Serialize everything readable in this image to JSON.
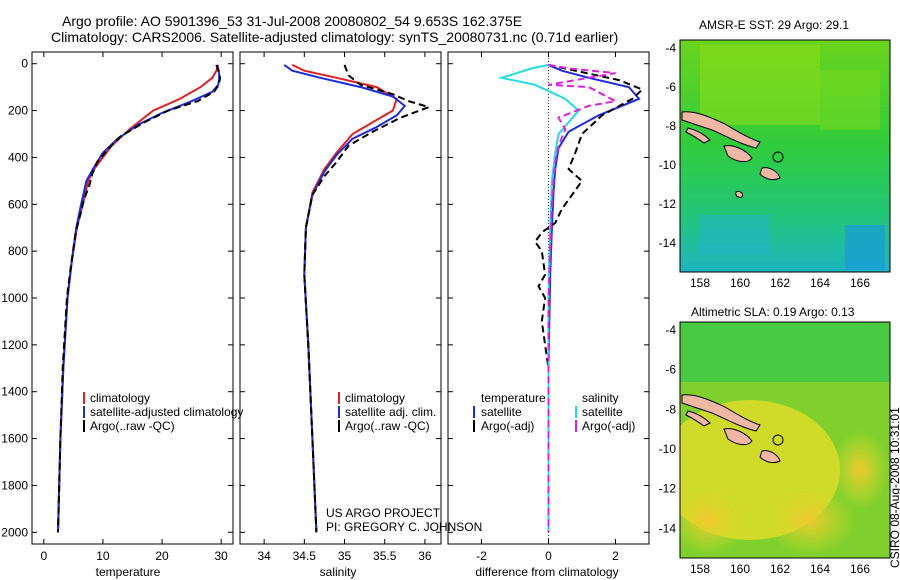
{
  "title_line1": "Argo profile: AO 5901396_53 31-Jul-2008 20080802_54 9.653S 162.375E",
  "title_line2": "Climatology: CARS2006. Satellite-adjusted climatology: synTS_20080731.nc (0.71d earlier)",
  "footer_project": "US ARGO PROJECT",
  "footer_pi": "PI: GREGORY C. JOHNSON",
  "timestamp_vertical": "CSIRO 08-Aug-2008 10:31:01",
  "colors": {
    "climatology": "#e02020",
    "satellite": "#1d2be0",
    "argo": "#000000",
    "sal_sat": "#22dde8",
    "sal_argo": "#e020e0"
  },
  "chart_data": [
    {
      "type": "line",
      "id": "temperature",
      "xlabel": "temperature",
      "ylabel": "",
      "xlim": [
        -2,
        32
      ],
      "ylim": [
        2050,
        -50
      ],
      "xticks": [
        0,
        10,
        20,
        30
      ],
      "yticks": [
        0,
        200,
        400,
        600,
        800,
        1000,
        1200,
        1400,
        1600,
        1800,
        2000
      ],
      "legend": [
        "climatology",
        "satellite-adjusted climatology",
        "Argo(..raw -QC)"
      ],
      "series": [
        {
          "name": "climatology",
          "style": "solid",
          "color": "climatology",
          "points": [
            [
              29.5,
              5
            ],
            [
              29.2,
              30
            ],
            [
              28.5,
              60
            ],
            [
              26.5,
              100
            ],
            [
              23,
              150
            ],
            [
              18.5,
              200
            ],
            [
              14.5,
              280
            ],
            [
              11.5,
              350
            ],
            [
              10,
              400
            ],
            [
              8.5,
              450
            ],
            [
              7.5,
              500
            ],
            [
              6.6,
              600
            ],
            [
              5.6,
              700
            ],
            [
              4.7,
              850
            ],
            [
              4,
              1000
            ],
            [
              3.3,
              1300
            ],
            [
              2.8,
              1600
            ],
            [
              2.4,
              2000
            ]
          ]
        },
        {
          "name": "satellite-adjusted climatology",
          "style": "solid",
          "color": "satellite",
          "points": [
            [
              29.3,
              5
            ],
            [
              29.6,
              30
            ],
            [
              29.7,
              60
            ],
            [
              29.5,
              90
            ],
            [
              28.5,
              120
            ],
            [
              25,
              160
            ],
            [
              20,
              210
            ],
            [
              16,
              260
            ],
            [
              12.5,
              320
            ],
            [
              10,
              380
            ],
            [
              8.3,
              450
            ],
            [
              7.2,
              500
            ],
            [
              6.3,
              600
            ],
            [
              5.5,
              700
            ],
            [
              4.7,
              850
            ],
            [
              4,
              1000
            ],
            [
              3.3,
              1300
            ],
            [
              2.8,
              1600
            ],
            [
              2.4,
              2000
            ]
          ]
        },
        {
          "name": "Argo(..raw -QC)",
          "style": "dashed",
          "color": "argo",
          "points": [
            [
              29.2,
              5
            ],
            [
              29.5,
              30
            ],
            [
              29.8,
              60
            ],
            [
              29.6,
              90
            ],
            [
              28.8,
              120
            ],
            [
              26,
              160
            ],
            [
              21,
              200
            ],
            [
              17,
              250
            ],
            [
              13,
              310
            ],
            [
              11,
              360
            ],
            [
              9,
              420
            ],
            [
              8.2,
              470
            ],
            [
              7.7,
              520
            ],
            [
              6.8,
              580
            ],
            [
              6.2,
              640
            ],
            [
              5.4,
              720
            ],
            [
              4.6,
              860
            ],
            [
              3.9,
              1000
            ],
            [
              3.2,
              1300
            ],
            [
              2.8,
              1600
            ],
            [
              2.4,
              2000
            ]
          ]
        }
      ]
    },
    {
      "type": "line",
      "id": "salinity",
      "xlabel": "salinity",
      "ylabel": "",
      "xlim": [
        33.7,
        36.2
      ],
      "ylim": [
        2050,
        -50
      ],
      "xticks": [
        34,
        34.5,
        35,
        35.5,
        36
      ],
      "yticks": [],
      "legend": [
        "climatology",
        "satellite adj. clim.",
        "Argo(..raw -QC)"
      ],
      "series": [
        {
          "name": "climatology",
          "style": "solid",
          "color": "climatology",
          "points": [
            [
              34.35,
              5
            ],
            [
              34.5,
              30
            ],
            [
              34.9,
              60
            ],
            [
              35.4,
              100
            ],
            [
              35.65,
              150
            ],
            [
              35.6,
              200
            ],
            [
              35.35,
              250
            ],
            [
              35.1,
              300
            ],
            [
              34.9,
              380
            ],
            [
              34.75,
              450
            ],
            [
              34.6,
              550
            ],
            [
              34.52,
              700
            ],
            [
              34.5,
              900
            ],
            [
              34.55,
              1200
            ],
            [
              34.6,
              1600
            ],
            [
              34.65,
              2000
            ]
          ]
        },
        {
          "name": "satellite adj. clim.",
          "style": "solid",
          "color": "satellite",
          "points": [
            [
              34.25,
              5
            ],
            [
              34.35,
              30
            ],
            [
              34.7,
              60
            ],
            [
              35.2,
              100
            ],
            [
              35.6,
              140
            ],
            [
              35.75,
              180
            ],
            [
              35.65,
              220
            ],
            [
              35.4,
              270
            ],
            [
              35.1,
              320
            ],
            [
              34.9,
              390
            ],
            [
              34.75,
              460
            ],
            [
              34.6,
              560
            ],
            [
              34.52,
              700
            ],
            [
              34.5,
              900
            ],
            [
              34.55,
              1200
            ],
            [
              34.6,
              1600
            ],
            [
              34.65,
              2000
            ]
          ]
        },
        {
          "name": "Argo(..raw -QC)",
          "style": "dashed",
          "color": "argo",
          "points": [
            [
              35.0,
              5
            ],
            [
              35.05,
              50
            ],
            [
              35.2,
              90
            ],
            [
              35.6,
              130
            ],
            [
              35.8,
              160
            ],
            [
              36.05,
              185
            ],
            [
              35.7,
              230
            ],
            [
              35.35,
              290
            ],
            [
              35.05,
              350
            ],
            [
              34.9,
              420
            ],
            [
              34.75,
              480
            ],
            [
              34.6,
              560
            ],
            [
              34.52,
              700
            ],
            [
              34.5,
              900
            ],
            [
              34.55,
              1200
            ],
            [
              34.6,
              1600
            ],
            [
              34.65,
              2000
            ]
          ]
        }
      ]
    },
    {
      "type": "line",
      "id": "difference",
      "xlabel": "difference from climatology",
      "ylabel": "",
      "xlim": [
        -3,
        3
      ],
      "ylim": [
        2050,
        -50
      ],
      "xticks": [
        -2,
        0,
        2
      ],
      "yticks": [],
      "legend_headers": [
        "temperature",
        "salinity"
      ],
      "legend": [
        "satellite",
        "Argo(-adj)",
        "satellite",
        "Argo(-adj)"
      ],
      "series": [
        {
          "name": "temperature satellite",
          "style": "solid",
          "color": "satellite",
          "points": [
            [
              0,
              5
            ],
            [
              0.4,
              30
            ],
            [
              1.2,
              60
            ],
            [
              2.4,
              100
            ],
            [
              2.7,
              150
            ],
            [
              1.5,
              220
            ],
            [
              0.6,
              290
            ],
            [
              0.3,
              360
            ],
            [
              0.2,
              450
            ],
            [
              0.15,
              550
            ],
            [
              0.1,
              700
            ],
            [
              0.05,
              900
            ],
            [
              0,
              1300
            ],
            [
              0,
              2000
            ]
          ]
        },
        {
          "name": "temperature Argo(-adj)",
          "style": "dashed",
          "color": "argo",
          "points": [
            [
              0,
              5
            ],
            [
              0.8,
              30
            ],
            [
              2.1,
              70
            ],
            [
              2.8,
              110
            ],
            [
              2.5,
              150
            ],
            [
              1.6,
              220
            ],
            [
              1.0,
              300
            ],
            [
              0.8,
              380
            ],
            [
              0.6,
              450
            ],
            [
              1.0,
              500
            ],
            [
              0.7,
              560
            ],
            [
              0.4,
              620
            ],
            [
              0.2,
              680
            ],
            [
              -0.2,
              720
            ],
            [
              -0.4,
              760
            ],
            [
              -0.2,
              800
            ],
            [
              -0.1,
              900
            ],
            [
              -0.3,
              950
            ],
            [
              -0.1,
              1000
            ],
            [
              -0.2,
              1100
            ],
            [
              -0.1,
              1200
            ],
            [
              0,
              1300
            ],
            [
              0,
              2000
            ]
          ]
        },
        {
          "name": "salinity satellite",
          "style": "solid",
          "color": "sal_sat",
          "points": [
            [
              0,
              5
            ],
            [
              -0.5,
              20
            ],
            [
              -1.4,
              60
            ],
            [
              -0.4,
              90
            ],
            [
              0.5,
              150
            ],
            [
              0.9,
              200
            ],
            [
              0.6,
              250
            ],
            [
              0.3,
              300
            ],
            [
              0.2,
              380
            ],
            [
              0.1,
              500
            ],
            [
              0.05,
              700
            ],
            [
              0,
              1000
            ],
            [
              0,
              2000
            ]
          ]
        },
        {
          "name": "salinity Argo(-adj)",
          "style": "dashed",
          "color": "sal_argo",
          "points": [
            [
              0,
              5
            ],
            [
              0.6,
              20
            ],
            [
              2,
              40
            ],
            [
              0.8,
              70
            ],
            [
              0,
              90
            ],
            [
              1.2,
              100
            ],
            [
              2.0,
              160
            ],
            [
              1.2,
              180
            ],
            [
              0.3,
              230
            ],
            [
              0.5,
              280
            ],
            [
              0.3,
              350
            ],
            [
              0.2,
              420
            ],
            [
              0.15,
              500
            ],
            [
              0.1,
              600
            ],
            [
              0.05,
              800
            ],
            [
              0,
              1000
            ],
            [
              0,
              2000
            ]
          ]
        }
      ]
    },
    {
      "type": "heatmap",
      "id": "sst_map",
      "title": "AMSR-E SST: 29 Argo: 29.1",
      "xlim": [
        157,
        167.5
      ],
      "ylim": [
        -15.5,
        -3.6
      ],
      "xticks": [
        158,
        160,
        162,
        164,
        166
      ],
      "yticks": [
        -4,
        -6,
        -8,
        -10,
        -12,
        -14
      ],
      "float_position": [
        162.375,
        -9.653
      ]
    },
    {
      "type": "heatmap",
      "id": "sla_map",
      "title": "Altimetric SLA: 0.19 Argo: 0.13",
      "xlim": [
        157,
        167.5
      ],
      "ylim": [
        -15.5,
        -3.6
      ],
      "xticks": [
        158,
        160,
        162,
        164,
        166
      ],
      "yticks": [
        -4,
        -6,
        -8,
        -10,
        -12,
        -14
      ],
      "float_position": [
        162.375,
        -9.653
      ]
    }
  ]
}
